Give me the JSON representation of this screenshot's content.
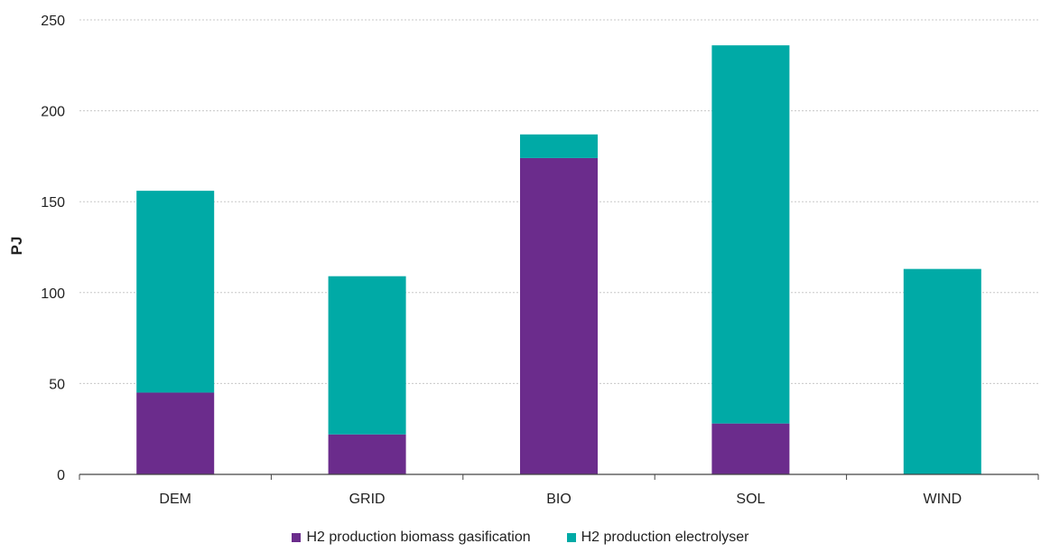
{
  "chart_data": {
    "type": "bar",
    "stacked": true,
    "categories": [
      "DEM",
      "GRID",
      "BIO",
      "SOL",
      "WIND"
    ],
    "series": [
      {
        "name": "H2 production biomass gasification",
        "color": "#6b2c8c",
        "values": [
          45,
          22,
          174,
          28,
          0
        ]
      },
      {
        "name": "H2 production electrolyser",
        "color": "#00aaa6",
        "values": [
          111,
          87,
          13,
          208,
          113
        ]
      }
    ],
    "xlabel": "",
    "ylabel": "PJ",
    "ylim": [
      0,
      250
    ],
    "yticks": [
      0,
      50,
      100,
      150,
      200,
      250
    ],
    "grid": true,
    "legend_position": "bottom"
  }
}
